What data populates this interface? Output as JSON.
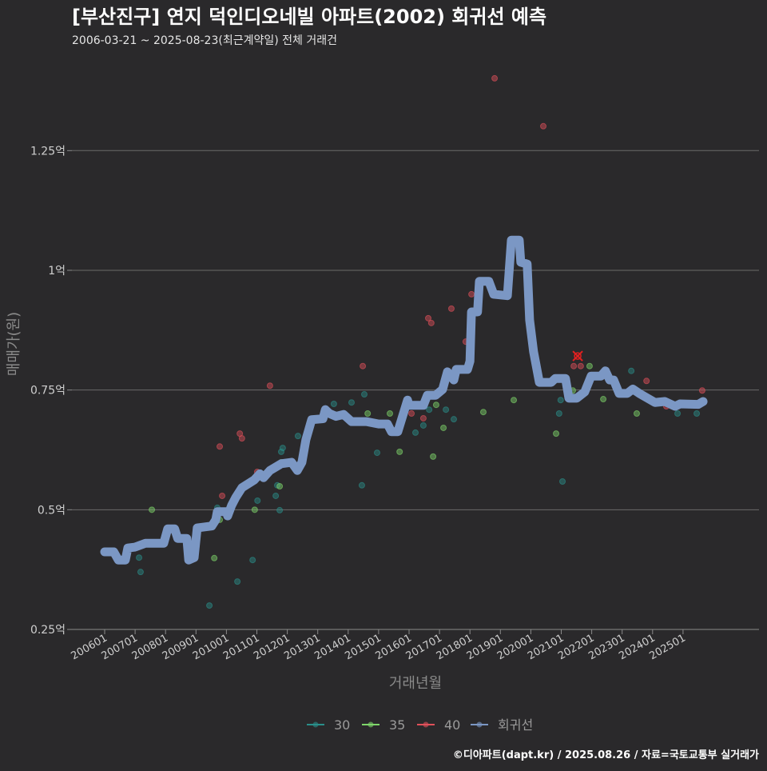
{
  "chart_data": {
    "type": "scatter",
    "title": "[부산진구] 연지 덕인디오네빌 아파트(2002) 회귀선 예측",
    "subtitle": "2006-03-21 ~ 2025-08-23(최근계약일) 전체 거래건",
    "xlabel": "거래년월",
    "ylabel": "매매가(원)",
    "ylim": [
      0.25,
      1.42
    ],
    "xlim": [
      2004.9,
      2026.2
    ],
    "y_ticks": [
      {
        "v": 0.25,
        "label": "0.25억"
      },
      {
        "v": 0.5,
        "label": "0.5억"
      },
      {
        "v": 0.75,
        "label": "0.75억"
      },
      {
        "v": 1.0,
        "label": "1억"
      },
      {
        "v": 1.25,
        "label": "1.25억"
      }
    ],
    "x_ticks": [
      "200601",
      "200701",
      "200801",
      "200901",
      "201001",
      "201101",
      "201201",
      "201301",
      "201401",
      "201501",
      "201601",
      "201701",
      "201801",
      "201901",
      "202001",
      "202101",
      "202201",
      "202301",
      "202401",
      "202501"
    ],
    "grid": true,
    "legend_position": "bottom",
    "series": [
      {
        "name": "30",
        "color": "#2a8f8a",
        "points": [
          [
            2007.13,
            0.4
          ],
          [
            2007.18,
            0.37
          ],
          [
            2009.44,
            0.3
          ],
          [
            2010.36,
            0.35
          ],
          [
            2010.86,
            0.395
          ],
          [
            2011.02,
            0.519
          ],
          [
            2011.67,
            0.551
          ],
          [
            2011.75,
            0.499
          ],
          [
            2011.8,
            0.621
          ],
          [
            2011.85,
            0.629
          ],
          [
            2012.35,
            0.654
          ],
          [
            2013.53,
            0.721
          ],
          [
            2014.11,
            0.724
          ],
          [
            2014.45,
            0.551
          ],
          [
            2014.53,
            0.741
          ],
          [
            2014.95,
            0.619
          ],
          [
            2016.21,
            0.661
          ],
          [
            2016.47,
            0.676
          ],
          [
            2016.66,
            0.709
          ],
          [
            2017.21,
            0.709
          ],
          [
            2017.47,
            0.689
          ],
          [
            2020.93,
            0.701
          ],
          [
            2021.04,
            0.559
          ],
          [
            2020.98,
            0.729
          ],
          [
            2023.3,
            0.79
          ],
          [
            2024.82,
            0.701
          ],
          [
            2025.45,
            0.701
          ],
          [
            2009.7,
            0.504
          ],
          [
            2011.62,
            0.529
          ]
        ]
      },
      {
        "name": "35",
        "color": "#7ed66a",
        "points": [
          [
            2007.55,
            0.5
          ],
          [
            2009.6,
            0.399
          ],
          [
            2009.78,
            0.479
          ],
          [
            2010.93,
            0.5
          ],
          [
            2011.75,
            0.549
          ],
          [
            2011.8,
            0.599
          ],
          [
            2014.64,
            0.701
          ],
          [
            2015.37,
            0.701
          ],
          [
            2015.69,
            0.621
          ],
          [
            2016.79,
            0.611
          ],
          [
            2016.89,
            0.719
          ],
          [
            2017.13,
            0.671
          ],
          [
            2018.44,
            0.704
          ],
          [
            2019.44,
            0.729
          ],
          [
            2020.83,
            0.659
          ],
          [
            2021.38,
            0.749
          ],
          [
            2021.93,
            0.8
          ],
          [
            2022.38,
            0.731
          ],
          [
            2023.48,
            0.701
          ]
        ]
      },
      {
        "name": "40",
        "color": "#e0505a",
        "points": [
          [
            2009.78,
            0.632
          ],
          [
            2009.86,
            0.529
          ],
          [
            2010.44,
            0.659
          ],
          [
            2010.51,
            0.649
          ],
          [
            2011.01,
            0.579
          ],
          [
            2011.43,
            0.759
          ],
          [
            2014.48,
            0.8
          ],
          [
            2016.63,
            0.9
          ],
          [
            2016.73,
            0.89
          ],
          [
            2017.39,
            0.92
          ],
          [
            2017.86,
            0.851
          ],
          [
            2018.05,
            0.95
          ],
          [
            2018.81,
            1.401
          ],
          [
            2020.41,
            1.301
          ],
          [
            2021.41,
            0.8
          ],
          [
            2021.64,
            0.8
          ],
          [
            2023.8,
            0.769
          ],
          [
            2024.45,
            0.716
          ],
          [
            2025.63,
            0.749
          ],
          [
            2016.08,
            0.701
          ],
          [
            2016.47,
            0.691
          ]
        ]
      }
    ],
    "highlight": {
      "x": 2021.54,
      "y": 0.821,
      "color": "#e02020"
    },
    "regression": {
      "name": "회귀선",
      "color": "#7b97c4",
      "points": [
        [
          2006.0,
          0.412
        ],
        [
          2006.3,
          0.412
        ],
        [
          2006.45,
          0.395
        ],
        [
          2006.68,
          0.395
        ],
        [
          2006.76,
          0.42
        ],
        [
          2007.0,
          0.422
        ],
        [
          2007.34,
          0.43
        ],
        [
          2007.94,
          0.43
        ],
        [
          2008.07,
          0.46
        ],
        [
          2008.3,
          0.46
        ],
        [
          2008.4,
          0.44
        ],
        [
          2008.7,
          0.44
        ],
        [
          2008.76,
          0.395
        ],
        [
          2008.94,
          0.4
        ],
        [
          2009.04,
          0.462
        ],
        [
          2009.52,
          0.466
        ],
        [
          2009.65,
          0.479
        ],
        [
          2009.7,
          0.496
        ],
        [
          2010.0,
          0.496
        ],
        [
          2010.04,
          0.487
        ],
        [
          2010.17,
          0.509
        ],
        [
          2010.3,
          0.525
        ],
        [
          2010.51,
          0.546
        ],
        [
          2010.91,
          0.562
        ],
        [
          2011.1,
          0.575
        ],
        [
          2011.22,
          0.567
        ],
        [
          2011.43,
          0.582
        ],
        [
          2011.8,
          0.596
        ],
        [
          2012.14,
          0.599
        ],
        [
          2012.33,
          0.582
        ],
        [
          2012.48,
          0.599
        ],
        [
          2012.61,
          0.646
        ],
        [
          2012.8,
          0.688
        ],
        [
          2013.17,
          0.69
        ],
        [
          2013.25,
          0.709
        ],
        [
          2013.38,
          0.701
        ],
        [
          2013.6,
          0.695
        ],
        [
          2013.85,
          0.699
        ],
        [
          2014.11,
          0.684
        ],
        [
          2014.6,
          0.684
        ],
        [
          2015.0,
          0.679
        ],
        [
          2015.29,
          0.679
        ],
        [
          2015.42,
          0.663
        ],
        [
          2015.63,
          0.663
        ],
        [
          2015.95,
          0.729
        ],
        [
          2016.0,
          0.718
        ],
        [
          2016.47,
          0.718
        ],
        [
          2016.6,
          0.739
        ],
        [
          2016.87,
          0.739
        ],
        [
          2017.1,
          0.751
        ],
        [
          2017.26,
          0.788
        ],
        [
          2017.47,
          0.771
        ],
        [
          2017.55,
          0.793
        ],
        [
          2017.92,
          0.793
        ],
        [
          2018.0,
          0.81
        ],
        [
          2018.05,
          0.913
        ],
        [
          2018.25,
          0.913
        ],
        [
          2018.31,
          0.977
        ],
        [
          2018.62,
          0.977
        ],
        [
          2018.78,
          0.95
        ],
        [
          2019.23,
          0.947
        ],
        [
          2019.36,
          1.063
        ],
        [
          2019.62,
          1.063
        ],
        [
          2019.67,
          1.017
        ],
        [
          2019.88,
          1.013
        ],
        [
          2019.96,
          0.896
        ],
        [
          2020.09,
          0.83
        ],
        [
          2020.28,
          0.766
        ],
        [
          2020.67,
          0.766
        ],
        [
          2020.8,
          0.774
        ],
        [
          2021.14,
          0.774
        ],
        [
          2021.25,
          0.733
        ],
        [
          2021.51,
          0.733
        ],
        [
          2021.77,
          0.746
        ],
        [
          2021.98,
          0.779
        ],
        [
          2022.3,
          0.779
        ],
        [
          2022.45,
          0.79
        ],
        [
          2022.59,
          0.771
        ],
        [
          2022.72,
          0.771
        ],
        [
          2022.9,
          0.743
        ],
        [
          2023.17,
          0.743
        ],
        [
          2023.35,
          0.752
        ],
        [
          2023.56,
          0.743
        ],
        [
          2024.08,
          0.724
        ],
        [
          2024.4,
          0.726
        ],
        [
          2024.74,
          0.716
        ],
        [
          2024.9,
          0.721
        ],
        [
          2025.5,
          0.72
        ],
        [
          2025.66,
          0.726
        ]
      ]
    }
  },
  "footer": "©디아파트(dapt.kr) / 2025.08.26 / 자료=국토교통부 실거래가"
}
